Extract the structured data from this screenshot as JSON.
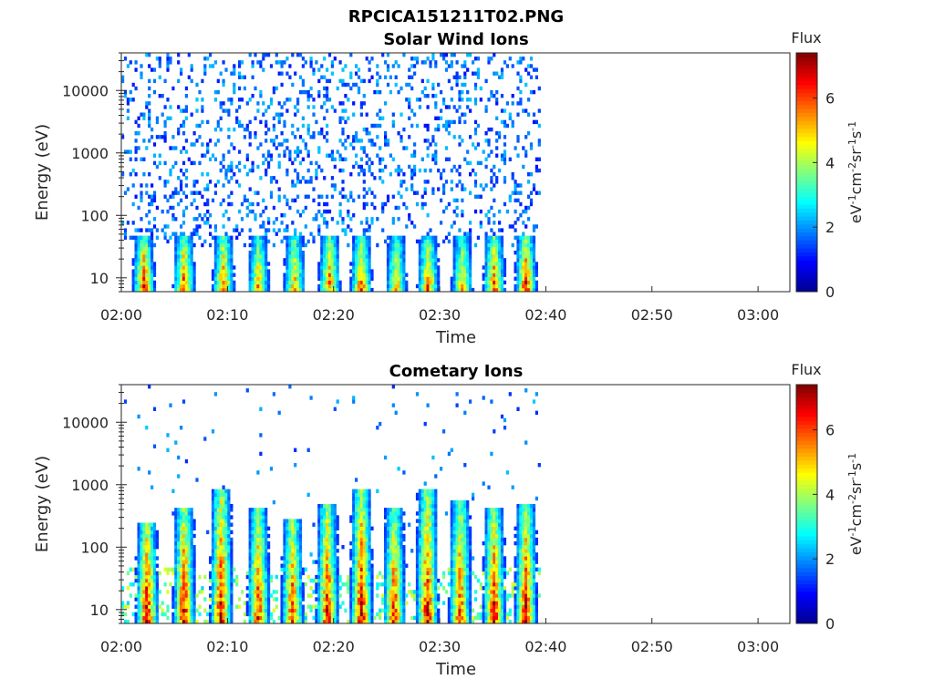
{
  "figure": {
    "title": "RPCICA151211T02.PNG"
  },
  "colormap": [
    "#00008f",
    "#0000ff",
    "#0080ff",
    "#00ffff",
    "#80ff80",
    "#ffff00",
    "#ff8000",
    "#ff0000",
    "#800000"
  ],
  "chart_data": [
    {
      "type": "heatmap",
      "title": "Solar Wind Ions",
      "xlabel": "Time",
      "ylabel": "Energy (eV)",
      "x_ticks": [
        "02:00",
        "02:10",
        "02:20",
        "02:30",
        "02:40",
        "02:50",
        "03:00"
      ],
      "x_range_minutes": [
        0,
        63
      ],
      "y_ticks": [
        10,
        100,
        1000,
        10000
      ],
      "y_scale": "log",
      "y_range": [
        6,
        40000
      ],
      "data_extent_minutes": [
        0,
        39.5
      ],
      "colorbar": {
        "label": "Flux",
        "unit": "eV-1cm-2sr-1s-1",
        "ticks": [
          0,
          2,
          4,
          6
        ],
        "range": [
          0,
          7.4
        ]
      },
      "bursts": [
        {
          "t": 2.0,
          "peak": 6.5,
          "top_energy": 45
        },
        {
          "t": 5.8,
          "peak": 6.4,
          "top_energy": 45
        },
        {
          "t": 9.5,
          "peak": 6.0,
          "top_energy": 50
        },
        {
          "t": 12.8,
          "peak": 5.6,
          "top_energy": 45
        },
        {
          "t": 16.2,
          "peak": 5.6,
          "top_energy": 45
        },
        {
          "t": 19.5,
          "peak": 6.0,
          "top_energy": 50
        },
        {
          "t": 22.5,
          "peak": 6.2,
          "top_energy": 45
        },
        {
          "t": 25.8,
          "peak": 5.4,
          "top_energy": 45
        },
        {
          "t": 28.8,
          "peak": 6.1,
          "top_energy": 45
        },
        {
          "t": 32.0,
          "peak": 5.4,
          "top_energy": 45
        },
        {
          "t": 35.0,
          "peak": 6.3,
          "top_energy": 45
        },
        {
          "t": 38.0,
          "peak": 6.6,
          "top_energy": 45
        }
      ]
    },
    {
      "type": "heatmap",
      "title": "Cometary Ions",
      "xlabel": "Time",
      "ylabel": "Energy (eV)",
      "x_ticks": [
        "02:00",
        "02:10",
        "02:20",
        "02:30",
        "02:40",
        "02:50",
        "03:00"
      ],
      "x_range_minutes": [
        0,
        63
      ],
      "y_ticks": [
        10,
        100,
        1000,
        10000
      ],
      "y_scale": "log",
      "y_range": [
        6,
        40000
      ],
      "data_extent_minutes": [
        0,
        39.5
      ],
      "colorbar": {
        "label": "Flux",
        "unit": "eV-1cm-2sr-1s-1",
        "ticks": [
          0,
          2,
          4,
          6
        ],
        "range": [
          0,
          7.4
        ]
      },
      "bursts": [
        {
          "t": 2.3,
          "peak": 7.2,
          "top_energy": 250
        },
        {
          "t": 5.8,
          "peak": 7.0,
          "top_energy": 400
        },
        {
          "t": 9.3,
          "peak": 7.1,
          "top_energy": 900
        },
        {
          "t": 12.8,
          "peak": 6.6,
          "top_energy": 400
        },
        {
          "t": 16.0,
          "peak": 6.6,
          "top_energy": 300
        },
        {
          "t": 19.3,
          "peak": 6.9,
          "top_energy": 500
        },
        {
          "t": 22.5,
          "peak": 7.1,
          "top_energy": 800
        },
        {
          "t": 25.6,
          "peak": 6.6,
          "top_energy": 400
        },
        {
          "t": 28.7,
          "peak": 7.0,
          "top_energy": 900
        },
        {
          "t": 31.8,
          "peak": 6.6,
          "top_energy": 600
        },
        {
          "t": 35.0,
          "peak": 7.0,
          "top_energy": 400
        },
        {
          "t": 38.0,
          "peak": 6.9,
          "top_energy": 500
        }
      ]
    }
  ]
}
